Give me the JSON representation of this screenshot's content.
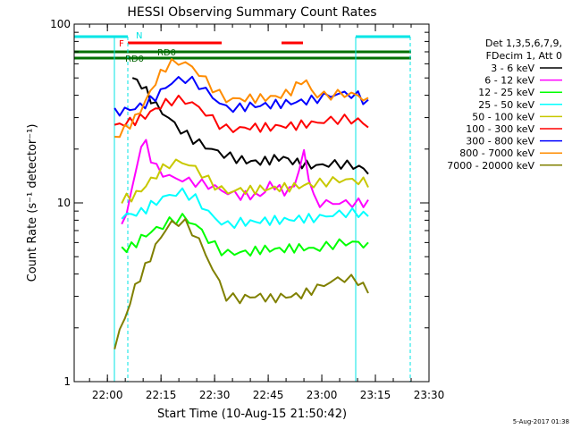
{
  "chart_data": {
    "type": "line",
    "title": "HESSI Observing Summary Count Rates",
    "xlabel": "Start Time (10-Aug-15 21:50:42)",
    "ylabel": "Count Rate (s⁻¹ detector⁻¹)",
    "y_scale": "log",
    "ylim": [
      1,
      100
    ],
    "xlim": [
      "21:50:42",
      "23:30:00"
    ],
    "x_ticks": [
      "22:00",
      "22:15",
      "22:30",
      "22:45",
      "23:00",
      "23:15",
      "23:30"
    ],
    "y_ticks": [
      "1",
      "10",
      "100"
    ],
    "grid": false,
    "legend_position": "top-right",
    "legend_header": [
      "Det 1,3,5,6,7,9,",
      "FDecim 1, Att 0"
    ],
    "footer": "5-Aug-2017 01:38",
    "annotations": [
      {
        "label": "N",
        "color": "#00e5e5"
      },
      {
        "label": "F",
        "color": "#ff0000"
      },
      {
        "label": "RD0",
        "color": "#006400"
      },
      {
        "label": "RD0",
        "color": "#006400"
      }
    ],
    "series": [
      {
        "name": "3 - 6 keV",
        "color": "#000000",
        "x": [
          "22:07",
          "22:10",
          "22:13",
          "22:17",
          "22:21",
          "22:25",
          "22:29",
          "22:33",
          "22:37",
          "22:40",
          "22:43",
          "22:46",
          "22:49",
          "22:52",
          "22:55",
          "22:58",
          "23:02",
          "23:06",
          "23:10",
          "23:13"
        ],
        "y": [
          50,
          45,
          36,
          30,
          25,
          22,
          20,
          18.5,
          17.5,
          17,
          17,
          17.5,
          18,
          17,
          16.5,
          16,
          16.5,
          16.5,
          16,
          15
        ]
      },
      {
        "name": "6 - 12 keV",
        "color": "#ff00ff",
        "x": [
          "22:04",
          "22:07",
          "22:10",
          "22:13",
          "22:17",
          "22:21",
          "22:25",
          "22:29",
          "22:33",
          "22:37",
          "22:40",
          "22:43",
          "22:46",
          "22:49",
          "22:52",
          "22:55",
          "22:58",
          "23:02",
          "23:06",
          "23:10",
          "23:13"
        ],
        "y": [
          7.2,
          12,
          24,
          16,
          14,
          13.5,
          13,
          12.5,
          11.5,
          11,
          11,
          11,
          13,
          11.5,
          12,
          19,
          10,
          10,
          10,
          10,
          10
        ]
      },
      {
        "name": "12 - 25 keV",
        "color": "#00ff00",
        "x": [
          "22:04",
          "22:07",
          "22:10",
          "22:13",
          "22:17",
          "22:21",
          "22:25",
          "22:29",
          "22:33",
          "22:37",
          "22:40",
          "22:43",
          "22:46",
          "22:49",
          "22:52",
          "22:55",
          "22:58",
          "23:02",
          "23:06",
          "23:10",
          "23:13"
        ],
        "y": [
          5.5,
          5.7,
          6.5,
          7,
          7.8,
          8.3,
          7.5,
          6,
          5.2,
          5.3,
          5.3,
          5.5,
          5.5,
          5.5,
          5.6,
          5.6,
          5.5,
          5.8,
          6,
          6,
          5.7
        ]
      },
      {
        "name": "25 - 50 keV",
        "color": "#00ffff",
        "x": [
          "22:04",
          "22:07",
          "22:10",
          "22:13",
          "22:17",
          "22:21",
          "22:25",
          "22:29",
          "22:33",
          "22:37",
          "22:40",
          "22:43",
          "22:46",
          "22:49",
          "22:52",
          "22:55",
          "22:58",
          "23:02",
          "23:06",
          "23:10",
          "23:13"
        ],
        "y": [
          8.5,
          8.6,
          9,
          10,
          11,
          11.5,
          10.5,
          8.5,
          7.5,
          7.8,
          7.8,
          7.9,
          8,
          8,
          8.1,
          8.2,
          8.2,
          8.5,
          8.8,
          8.8,
          8.5
        ]
      },
      {
        "name": "50 - 100 keV",
        "color": "#c8c800",
        "x": [
          "22:04",
          "22:07",
          "22:10",
          "22:13",
          "22:17",
          "22:21",
          "22:25",
          "22:29",
          "22:33",
          "22:37",
          "22:40",
          "22:43",
          "22:46",
          "22:49",
          "22:52",
          "22:55",
          "22:58",
          "23:02",
          "23:06",
          "23:10",
          "23:13"
        ],
        "y": [
          10.5,
          10.8,
          12,
          14,
          16.5,
          17,
          15.5,
          13,
          11.5,
          11.8,
          11.8,
          12,
          12,
          12.2,
          12.3,
          12.5,
          12.8,
          13.2,
          13.5,
          13.3,
          13
        ]
      },
      {
        "name": "100 - 300 keV",
        "color": "#ff0000",
        "x": [
          "22:02",
          "22:05",
          "22:08",
          "22:11",
          "22:14",
          "22:17",
          "22:21",
          "22:25",
          "22:29",
          "22:33",
          "22:37",
          "22:40",
          "22:43",
          "22:46",
          "22:49",
          "22:52",
          "22:55",
          "22:58",
          "23:02",
          "23:06",
          "23:10",
          "23:13"
        ],
        "y": [
          27,
          28,
          29,
          31,
          34,
          37,
          38,
          35,
          30,
          26,
          26,
          26.5,
          26.5,
          26.5,
          27,
          27,
          27.5,
          28,
          29,
          29.5,
          29,
          27
        ]
      },
      {
        "name": "300 - 800 keV",
        "color": "#0000ff",
        "x": [
          "22:02",
          "22:05",
          "22:08",
          "22:11",
          "22:14",
          "22:17",
          "22:21",
          "22:25",
          "22:29",
          "22:33",
          "22:37",
          "22:40",
          "22:43",
          "22:46",
          "22:49",
          "22:52",
          "22:55",
          "22:58",
          "23:02",
          "23:06",
          "23:10",
          "23:13"
        ],
        "y": [
          32,
          33,
          34,
          36,
          40,
          46,
          50,
          47,
          40,
          34,
          34,
          35,
          35,
          35.5,
          36,
          36.5,
          37,
          38,
          40,
          41,
          40,
          36
        ]
      },
      {
        "name": "800 - 7000 keV",
        "color": "#ff8c00",
        "x": [
          "22:02",
          "22:05",
          "22:08",
          "22:11",
          "22:14",
          "22:17",
          "22:21",
          "22:25",
          "22:29",
          "22:33",
          "22:37",
          "22:40",
          "22:43",
          "22:46",
          "22:49",
          "22:52",
          "22:55",
          "22:58",
          "23:02",
          "23:06",
          "23:10",
          "23:13"
        ],
        "y": [
          23,
          26,
          30,
          38,
          50,
          60,
          62,
          55,
          45,
          38,
          38,
          38.5,
          38.5,
          39,
          40,
          43,
          50,
          40,
          40,
          41,
          40,
          37
        ]
      },
      {
        "name": "7000 - 20000 keV",
        "color": "#808000",
        "x": [
          "22:02",
          "22:05",
          "22:08",
          "22:11",
          "22:14",
          "22:17",
          "22:21",
          "22:25",
          "22:29",
          "22:33",
          "22:37",
          "22:40",
          "22:43",
          "22:46",
          "22:49",
          "22:52",
          "22:55",
          "22:58",
          "23:02",
          "23:06",
          "23:10",
          "23:13"
        ],
        "y": [
          1.6,
          2.3,
          3.5,
          4.5,
          6,
          7.5,
          8,
          6.5,
          4.5,
          3,
          2.9,
          3,
          3,
          2.9,
          3,
          3,
          3.1,
          3.3,
          3.6,
          3.8,
          3.7,
          3.2
        ]
      }
    ]
  }
}
